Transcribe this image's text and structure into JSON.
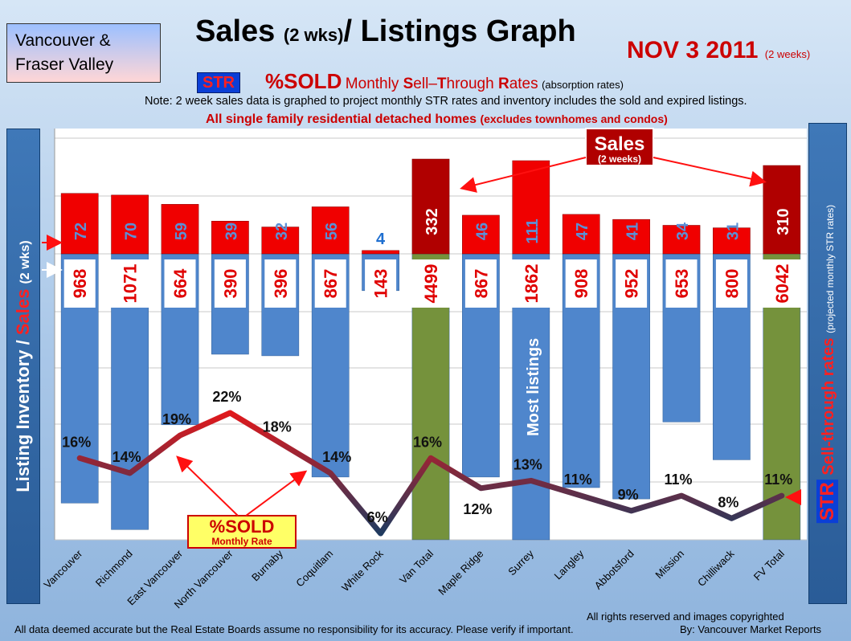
{
  "header": {
    "region_line1": "Vancouver &",
    "region_line2": "Fraser Valley",
    "title_main": "Sales ",
    "title_small": "(2 wks)",
    "title_rest": "/ Listings Graph",
    "date": "NOV 3 2011",
    "date_sub": "(2 weeks)",
    "str_badge": "STR",
    "pct_sold": "%SOLD",
    "pct_sold_sub_pre": "Monthly ",
    "pct_sold_S": "S",
    "pct_sold_sell": "ell",
    "pct_sold_dash": "–",
    "pct_sold_T": "T",
    "pct_sold_through": "hrough ",
    "pct_sold_R": "R",
    "pct_sold_rates": "ates",
    "pct_sold_paren": "(absorption rates)",
    "note": "Note: 2 week sales data is graphed to project monthly STR rates and inventory includes the sold and expired listings.",
    "sfd_main": "All single family residential detached homes ",
    "sfd_paren": "(excludes townhomes and condos)"
  },
  "left_axis": {
    "part1": "Listing Inventory / ",
    "part2": "Sales",
    "part3": "(2 wks)"
  },
  "right_axis": {
    "str": "STR",
    "part1": "Sell-through rates",
    "part2": "(projected monthly STR rates)"
  },
  "annotations": {
    "sales_callout": "Sales",
    "sales_callout_sub": "(2 weeks)",
    "sold_callout": "%SOLD",
    "sold_callout_sub": "Monthly Rate",
    "most_listings": "Most listings"
  },
  "footer": {
    "disclaimer": "All data deemed accurate but the Real Estate Boards assume no responsibility for its accuracy.  Please verify if important.",
    "rights": "All rights reserved and  images copyrighted",
    "by": "By: Vancouver Market Reports"
  },
  "colors": {
    "inventory_bar": "#4f86cc",
    "total_bar": "#75923c",
    "sales_bar": "#f00000",
    "total_sales_bar": "#b00000",
    "line_high": "#e0191c",
    "line_low": "#1f3a5f"
  },
  "chart_data": {
    "type": "bar",
    "categories": [
      "Vancouver",
      "Richmond",
      "East Vancouver",
      "North Vancouver",
      "Burnaby",
      "Coquitlam",
      "White Rock",
      "Van Total",
      "Maple Ridge",
      "Surrey",
      "Langley",
      "Abbotsford",
      "Mission",
      "Chilliwack",
      "FV Total"
    ],
    "series": [
      {
        "values": [
          968,
          1071,
          664,
          390,
          396,
          867,
          143,
          4499,
          867,
          1862,
          908,
          952,
          653,
          800,
          6042
        ]
      },
      {
        "values": [
          72,
          70,
          59,
          39,
          32,
          56,
          4,
          332,
          46,
          111,
          47,
          41,
          34,
          31,
          310
        ]
      },
      {
        "values": [
          16,
          14,
          19,
          22,
          18,
          14,
          6,
          16,
          12,
          13,
          11,
          9,
          11,
          8,
          11
        ]
      }
    ],
    "inventory_labels": [
      "968",
      "1071",
      "664",
      "390",
      "396",
      "867",
      "143",
      "4499",
      "867",
      "1862",
      "908",
      "952",
      "653",
      "800",
      "6042"
    ],
    "sales_labels": [
      "72",
      "70",
      "59",
      "39",
      "32",
      "56",
      "4",
      "332",
      "46",
      "111",
      "47",
      "41",
      "34",
      "31",
      "310"
    ],
    "str_labels": [
      "16%",
      "14%",
      "19%",
      "22%",
      "18%",
      "14%",
      "6%",
      "16%",
      "12%",
      "13%",
      "11%",
      "9%",
      "11%",
      "8%",
      "11%"
    ],
    "totals": [
      "Van Total",
      "FV Total"
    ],
    "grid": true
  }
}
